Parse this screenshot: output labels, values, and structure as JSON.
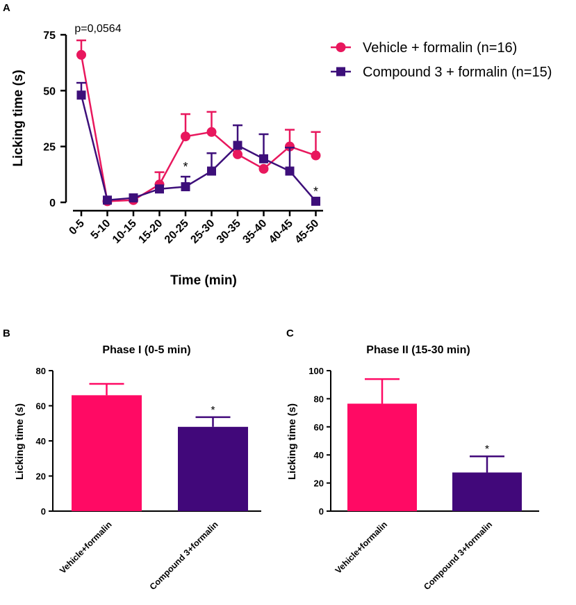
{
  "chart_data": [
    {
      "panel": "A",
      "type": "line",
      "xlabel": "Time (min)",
      "ylabel": "Licking time (s)",
      "ylim": [
        0,
        75
      ],
      "yticks": [
        0,
        25,
        50,
        75
      ],
      "categories": [
        "0-5",
        "5-10",
        "10-15",
        "15-20",
        "20-25",
        "25-30",
        "30-35",
        "35-40",
        "40-45",
        "45-50"
      ],
      "series": [
        {
          "name": "Vehicle + formalin (n=16)",
          "color": "#e8175d",
          "marker": "circle",
          "values": [
            66,
            0.5,
            1,
            8,
            29.5,
            31.5,
            21.5,
            15,
            25,
            21
          ],
          "err": [
            6.5,
            0,
            0,
            5.5,
            10,
            9,
            0,
            0,
            7.5,
            10.5
          ]
        },
        {
          "name": "Compound 3 + formalin (n=15)",
          "color": "#3d0f7a",
          "marker": "square",
          "values": [
            48,
            1,
            2,
            6,
            7,
            14,
            25.5,
            19.5,
            14,
            0.5
          ],
          "err": [
            5.5,
            0,
            0,
            0,
            4.5,
            8,
            9,
            11,
            10.5,
            0
          ]
        }
      ],
      "annotations": [
        {
          "text": "p=0,0564",
          "category": "0-5"
        },
        {
          "text": "*",
          "category": "20-25"
        },
        {
          "text": "*",
          "category": "45-50"
        }
      ]
    },
    {
      "panel": "B",
      "type": "bar",
      "title": "Phase I (0-5 min)",
      "ylabel": "Licking time (s)",
      "ylim": [
        0,
        80
      ],
      "yticks": [
        0,
        20,
        40,
        60,
        80
      ],
      "categories": [
        "Vehicle+formalin",
        "Compound 3+formalin"
      ],
      "values": [
        66,
        48
      ],
      "err": [
        6.5,
        5.5
      ],
      "colors": [
        "#ff0a64",
        "#41087a"
      ],
      "annotations": [
        {
          "text": "*",
          "category": "Compound 3+formalin"
        }
      ]
    },
    {
      "panel": "C",
      "type": "bar",
      "title": "Phase II (15-30 min)",
      "ylabel": "Licking time (s)",
      "ylim": [
        0,
        100
      ],
      "yticks": [
        0,
        20,
        40,
        60,
        80,
        100
      ],
      "categories": [
        "Vehicle+formalin",
        "Compound 3+formalin"
      ],
      "values": [
        76.5,
        27.5
      ],
      "err": [
        17.5,
        11.5
      ],
      "colors": [
        "#ff0a64",
        "#41087a"
      ],
      "annotations": [
        {
          "text": "*",
          "category": "Compound 3+formalin"
        }
      ]
    }
  ]
}
